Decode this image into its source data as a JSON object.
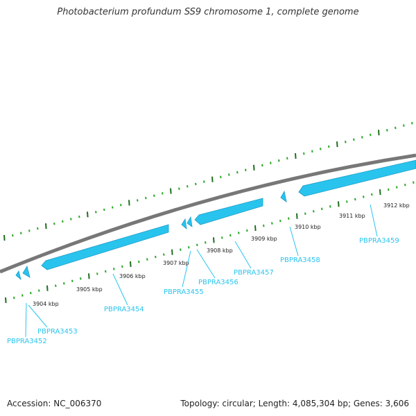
{
  "title": "Photobacterium profundum SS9 chromosome 1, complete genome",
  "footer": {
    "accession": "Accession: NC_006370",
    "summary": "Topology: circular; Length: 4,085,304 bp; Genes: 3,606"
  },
  "colors": {
    "backbone": "#777777",
    "gene": "#29c4ee",
    "gene_edge": "#1a9dc8",
    "tick_dark": "#1e6f1e",
    "tick_light": "#2aa82a",
    "label": "#29c4ee",
    "text": "#222222"
  },
  "kbp_labels": [
    "3904 kbp",
    "3905 kbp",
    "3906 kbp",
    "3907 kbp",
    "3908 kbp",
    "3909 kbp",
    "3910 kbp",
    "3911 kbp",
    "3912 kbp"
  ],
  "genes": [
    {
      "id": "PBPRA3452"
    },
    {
      "id": "PBPRA3453"
    },
    {
      "id": "PBPRA3454"
    },
    {
      "id": "PBPRA3455"
    },
    {
      "id": "PBPRA3456"
    },
    {
      "id": "PBPRA3457"
    },
    {
      "id": "PBPRA3458"
    },
    {
      "id": "PBPRA3459"
    }
  ]
}
